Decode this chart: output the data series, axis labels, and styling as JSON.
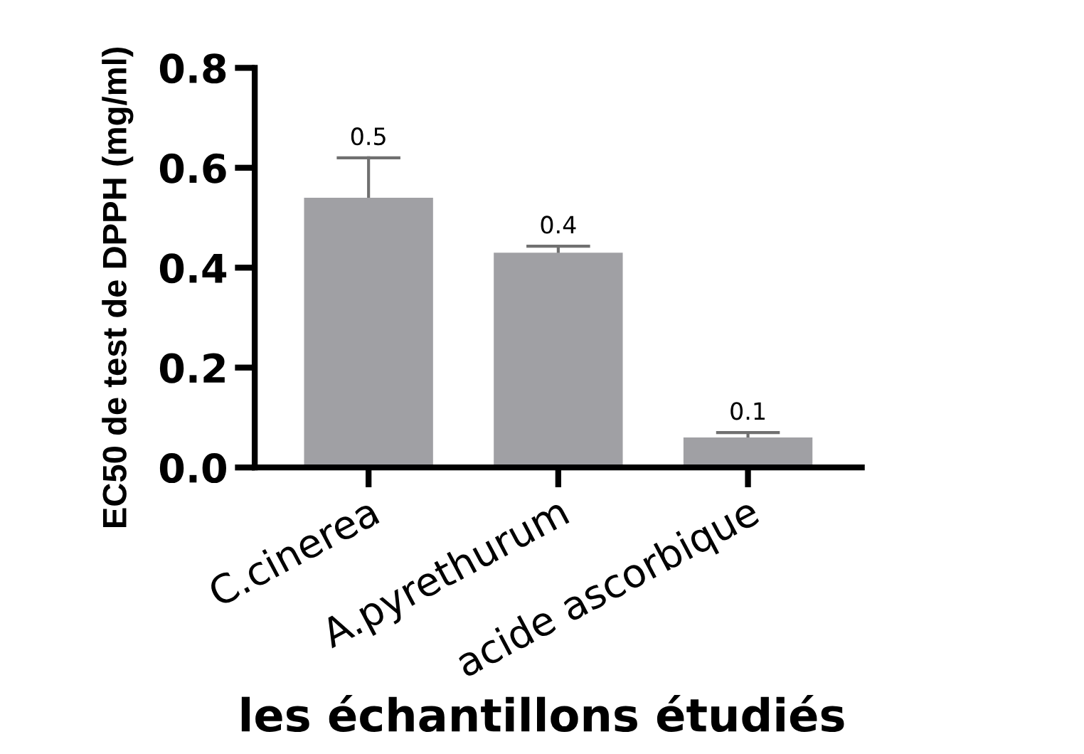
{
  "chart_data": {
    "type": "bar",
    "xlabel": "les échantillons étudiés",
    "ylabel": "EC50 de test de DPPH (mg/ml)",
    "categories": [
      "C.cinerea",
      "A.pyrethurum",
      "acide ascorbique"
    ],
    "values": [
      0.54,
      0.43,
      0.06
    ],
    "color": "#a0a0a4",
    "errors": [
      [
        0.54,
        0.62
      ],
      [
        0.43,
        0.443
      ],
      [
        0.06,
        0.07
      ]
    ],
    "value_labels": [
      "0.5",
      "0.4",
      "0.1"
    ],
    "ylim": [
      0,
      0.8
    ],
    "yticks": [
      {
        "value": 0,
        "label": "0.0"
      },
      {
        "value": 0.2,
        "label": "0.2"
      },
      {
        "value": 0.4,
        "label": "0.4"
      },
      {
        "value": 0.6,
        "label": "0.6"
      },
      {
        "value": 0.8,
        "label": "0.8"
      }
    ],
    "grid": false,
    "legend": false
  }
}
